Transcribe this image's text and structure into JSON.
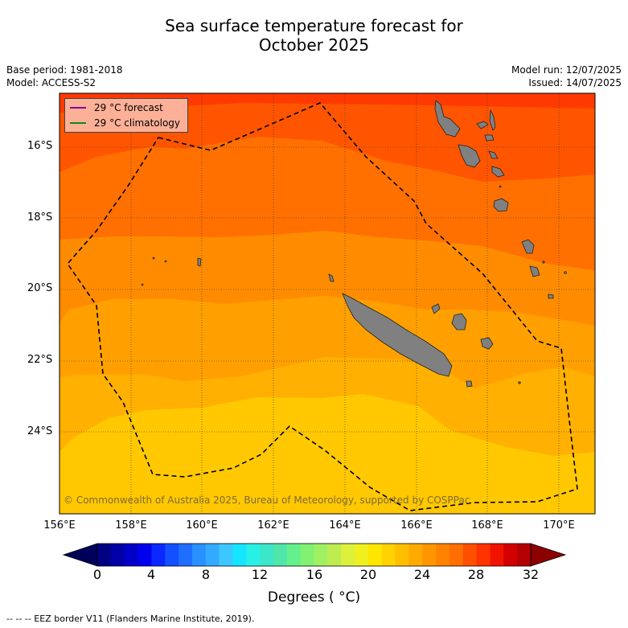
{
  "title_line1": "Sea surface temperature forecast for",
  "title_line2": "October 2025",
  "meta": {
    "base_period": "Base period: 1981-2018",
    "model": "Model: ACCESS-S2",
    "model_run": "Model run: 12/07/2025",
    "issued": "Issued: 14/07/2025"
  },
  "legend": {
    "forecast": "29 °C  forecast",
    "forecast_color": "#7b0a99",
    "climatology": "29 °C  climatology",
    "climatology_color": "#138a13"
  },
  "lat_labels": [
    "16°S",
    "18°S",
    "20°S",
    "22°S",
    "24°S"
  ],
  "lon_labels": [
    "156°E",
    "158°E",
    "160°E",
    "162°E",
    "164°E",
    "166°E",
    "168°E",
    "170°E"
  ],
  "colorbar": {
    "tick_labels": [
      "0",
      "4",
      "8",
      "12",
      "16",
      "20",
      "24",
      "28",
      "32"
    ],
    "title": "Degrees ( °C)"
  },
  "copyright": "© Commonwealth of Australia 2025, Bureau of Meteorology, supported by COSPPac",
  "footer": "--  --  -- EEZ border V11 (Flanders Marine Institute, 2019)."
}
